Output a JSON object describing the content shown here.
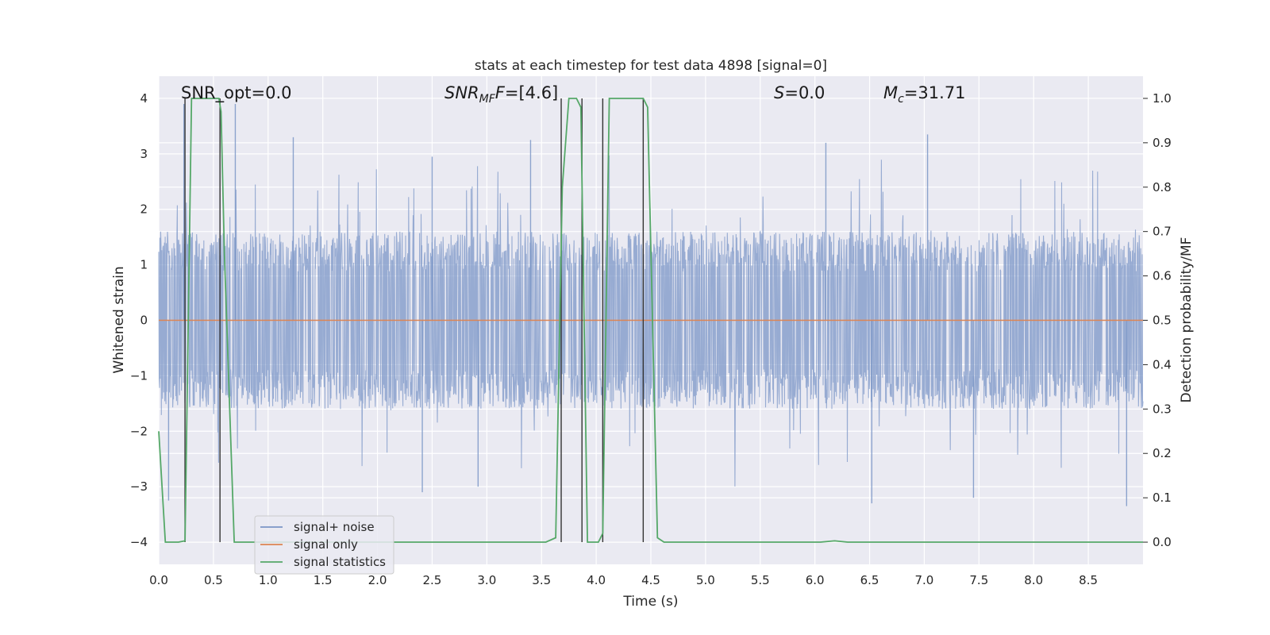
{
  "chart_data": {
    "type": "line",
    "title": "stats at each timestep for test data 4898 [signal=0]",
    "xlabel": "Time (s)",
    "ylabel_left": "Whitened strain",
    "ylabel_right": "Detection probability/MF",
    "xlim": [
      0.0,
      9.0
    ],
    "ylim_left": [
      -4.4,
      4.4
    ],
    "ylim_right": [
      -0.05,
      1.05
    ],
    "x_ticks": [
      "0.0",
      "0.5",
      "1.0",
      "1.5",
      "2.0",
      "2.5",
      "3.0",
      "3.5",
      "4.0",
      "4.5",
      "5.0",
      "5.5",
      "6.0",
      "6.5",
      "7.0",
      "7.5",
      "8.0",
      "8.5"
    ],
    "y_left_ticks": [
      "4",
      "3",
      "2",
      "1",
      "0",
      "−1",
      "−2",
      "−3",
      "−4"
    ],
    "y_right_ticks": [
      "1.0",
      "0.9",
      "0.8",
      "0.7",
      "0.6",
      "0.5",
      "0.4",
      "0.3",
      "0.2",
      "0.1",
      "0.0"
    ],
    "grid": true,
    "legend_position": "lower-left",
    "series": [
      {
        "name": "signal+ noise",
        "color": "#7b96c7",
        "axis": "left",
        "style": "dense noise trace, typical amplitude about ±1.6 with peaks reaching about ±3.3",
        "typical_band": [
          -1.6,
          1.6
        ],
        "peaks": [
          {
            "x": 0.23,
            "y": 3.9
          },
          {
            "x": 0.7,
            "y": 3.9
          },
          {
            "x": 1.23,
            "y": 3.3
          },
          {
            "x": 2.5,
            "y": 2.95
          },
          {
            "x": 3.4,
            "y": 3.25
          },
          {
            "x": 6.1,
            "y": 3.2
          },
          {
            "x": 7.03,
            "y": 3.35
          },
          {
            "x": 0.09,
            "y": -3.25
          },
          {
            "x": 2.41,
            "y": -3.1
          },
          {
            "x": 2.92,
            "y": -3.0
          },
          {
            "x": 6.52,
            "y": -3.3
          },
          {
            "x": 7.45,
            "y": -3.2
          },
          {
            "x": 8.85,
            "y": -3.35
          }
        ]
      },
      {
        "name": "signal only",
        "color": "#dd8452",
        "axis": "left",
        "x": [
          0.0,
          9.0
        ],
        "y": [
          0.0,
          0.0
        ]
      },
      {
        "name": "signal statistics",
        "color": "#55a868",
        "axis": "right",
        "x": [
          0.0,
          0.06,
          0.18,
          0.24,
          0.27,
          0.3,
          0.55,
          0.57,
          0.6,
          0.69,
          3.54,
          3.63,
          3.69,
          3.75,
          3.82,
          3.86,
          3.92,
          4.02,
          4.06,
          4.12,
          4.43,
          4.47,
          4.56,
          4.62,
          6.05,
          6.18,
          6.3,
          9.0
        ],
        "y": [
          0.25,
          0.0,
          0.0,
          0.003,
          0.5,
          1.0,
          1.0,
          0.97,
          0.65,
          0.0,
          0.0,
          0.01,
          0.8,
          1.0,
          1.0,
          0.98,
          0.0,
          0.0,
          0.02,
          1.0,
          1.0,
          0.98,
          0.01,
          0.0,
          0.0,
          0.003,
          0.0,
          0.0
        ]
      }
    ],
    "vertical_markers": [
      {
        "x": 0.24,
        "ymin": 0.0,
        "ymax": 1.0
      },
      {
        "x": 0.56,
        "ymin": 0.0,
        "ymax": 1.0
      },
      {
        "x": 3.68,
        "ymin": 0.0,
        "ymax": 1.0
      },
      {
        "x": 3.87,
        "ymin": 0.0,
        "ymax": 1.0
      },
      {
        "x": 4.06,
        "ymin": 0.0,
        "ymax": 1.0
      },
      {
        "x": 4.43,
        "ymin": 0.0,
        "ymax": 1.0
      }
    ],
    "annotations": {
      "snr_opt": "SNR_opt=0.0",
      "snr_mf_label": "SNR",
      "snr_mf_sub": "MF",
      "snr_mf_value": "=[4.6]",
      "s_label": "S",
      "s_value": "=0.0",
      "mc_label": "M",
      "mc_sub": "c",
      "mc_value": "=31.71"
    },
    "colors": {
      "axes_background": "#eaeaf2",
      "grid": "#ffffff",
      "marker_line": "#333333"
    }
  }
}
